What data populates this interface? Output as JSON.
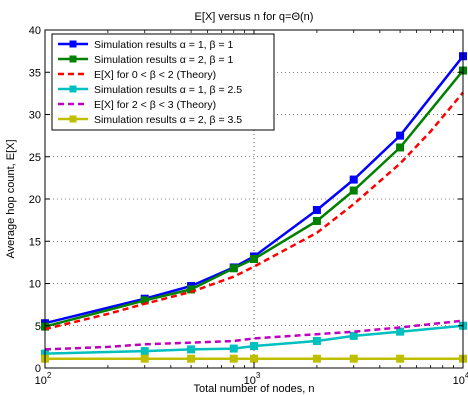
{
  "chart_data": {
    "type": "line",
    "title": "E[X] versus n for q=Θ(n)",
    "xlabel": "Total number of nodes, n",
    "ylabel": "Average hop count, E[X]",
    "x_scale": "log",
    "xlim": [
      100,
      10000
    ],
    "ylim": [
      0,
      40
    ],
    "grid": true,
    "legend_position": "top-left",
    "x_ticks": [
      {
        "value": 100,
        "base": "10",
        "exp": "2"
      },
      {
        "value": 1000,
        "base": "10",
        "exp": "3"
      },
      {
        "value": 10000,
        "base": "10",
        "exp": "4"
      }
    ],
    "y_ticks": [
      0,
      5,
      10,
      15,
      20,
      25,
      30,
      35,
      40
    ],
    "series": [
      {
        "name": "Simulation results α = 1, β = 1",
        "color": "#0000ff",
        "dashed": false,
        "marker": "square",
        "points": [
          [
            100,
            5.3
          ],
          [
            300,
            8.2
          ],
          [
            500,
            9.7
          ],
          [
            800,
            11.9
          ],
          [
            1000,
            13.2
          ],
          [
            2000,
            18.7
          ],
          [
            3000,
            22.3
          ],
          [
            5000,
            27.5
          ],
          [
            10000,
            36.9
          ]
        ]
      },
      {
        "name": "Simulation results α = 2, β = 1",
        "color": "#008000",
        "dashed": false,
        "marker": "square",
        "points": [
          [
            100,
            4.9
          ],
          [
            300,
            8.0
          ],
          [
            500,
            9.3
          ],
          [
            800,
            11.8
          ],
          [
            1000,
            12.9
          ],
          [
            2000,
            17.4
          ],
          [
            3000,
            21.0
          ],
          [
            5000,
            26.1
          ],
          [
            10000,
            35.2
          ]
        ]
      },
      {
        "name": "E[X] for 0 < β < 2 (Theory)",
        "color": "#ff0000",
        "dashed": true,
        "marker": "none",
        "points": [
          [
            100,
            4.6
          ],
          [
            200,
            6.4
          ],
          [
            300,
            7.6
          ],
          [
            500,
            9.0
          ],
          [
            800,
            10.8
          ],
          [
            1000,
            12.0
          ],
          [
            2000,
            16.0
          ],
          [
            3000,
            19.4
          ],
          [
            5000,
            24.2
          ],
          [
            7000,
            28.0
          ],
          [
            10000,
            32.6
          ]
        ]
      },
      {
        "name": "Simulation results α = 1, β = 2.5",
        "color": "#00bfbf",
        "dashed": false,
        "marker": "square",
        "points": [
          [
            100,
            1.7
          ],
          [
            300,
            2.0
          ],
          [
            500,
            2.2
          ],
          [
            800,
            2.3
          ],
          [
            1000,
            2.6
          ],
          [
            2000,
            3.2
          ],
          [
            3000,
            3.8
          ],
          [
            5000,
            4.3
          ],
          [
            10000,
            5.0
          ]
        ]
      },
      {
        "name": "E[X] for 2 <  β < 3  (Theory)",
        "color": "#bf00bf",
        "dashed": true,
        "marker": "none",
        "points": [
          [
            100,
            2.2
          ],
          [
            200,
            2.5
          ],
          [
            300,
            2.8
          ],
          [
            500,
            3.0
          ],
          [
            800,
            3.2
          ],
          [
            1000,
            3.5
          ],
          [
            2000,
            4.0
          ],
          [
            3000,
            4.3
          ],
          [
            5000,
            4.8
          ],
          [
            10000,
            5.6
          ]
        ]
      },
      {
        "name": "Simulation results α = 2, β = 3.5",
        "color": "#bfbf00",
        "dashed": false,
        "marker": "square",
        "points": [
          [
            100,
            1.1
          ],
          [
            300,
            1.1
          ],
          [
            500,
            1.1
          ],
          [
            800,
            1.1
          ],
          [
            1000,
            1.1
          ],
          [
            2000,
            1.1
          ],
          [
            3000,
            1.1
          ],
          [
            5000,
            1.1
          ],
          [
            10000,
            1.1
          ]
        ]
      }
    ]
  }
}
